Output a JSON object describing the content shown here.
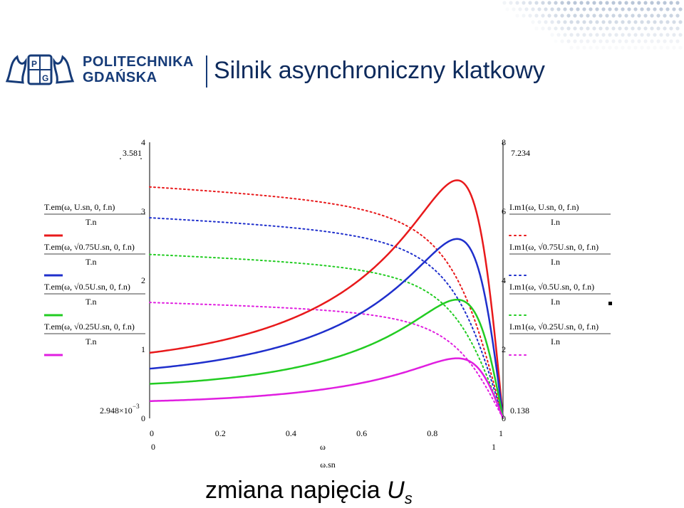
{
  "header": {
    "institution_line1": "POLITECHNIKA",
    "institution_line2": "GDAŃSKA",
    "title": "Silnik asynchroniczny klatkowy"
  },
  "footer": {
    "text": "zmiana napięcia ",
    "var": "U",
    "sub": "s"
  },
  "colors": {
    "red": "#e8191b",
    "blue": "#1f2fcc",
    "green": "#22cc22",
    "magenta": "#e01ee0",
    "axis": "#000000",
    "title": "#0d2a5c",
    "brand": "#163b78"
  },
  "chart_data": {
    "type": "line",
    "x_axis": {
      "min": 0,
      "max": 1,
      "ticks": [
        "0",
        "0.2",
        "0.4",
        "0.6",
        "0.8",
        "1"
      ],
      "label_num": "ω",
      "label_den": "ω.sn",
      "range_left": "0",
      "range_right": "1"
    },
    "y_left": {
      "min": 0,
      "max": 4,
      "ticks": [
        "0",
        "1",
        "2",
        "3",
        "4"
      ],
      "range_top": "3.581",
      "range_bottom": "2.948×10",
      "range_bottom_exp": "−3"
    },
    "y_right": {
      "min": 0,
      "max": 8,
      "ticks": [
        "0",
        "2",
        "4",
        "6",
        "8"
      ],
      "range_top": "7.234",
      "range_bottom": "0.138"
    },
    "legend_left": [
      {
        "num": "T.em(ω, U.sn, 0, f.n)",
        "den": "T.n",
        "color": "red"
      },
      {
        "num": "T.em(ω, √0.75U.sn, 0, f.n)",
        "den": "T.n",
        "color": "blue"
      },
      {
        "num": "T.em(ω, √0.5U.sn, 0, f.n)",
        "den": "T.n",
        "color": "green"
      },
      {
        "num": "T.em(ω, √0.25U.sn, 0, f.n)",
        "den": "T.n",
        "color": "magenta"
      }
    ],
    "legend_right": [
      {
        "num": "I.m1(ω, U.sn, 0, f.n)",
        "den": "I.n",
        "color": "red"
      },
      {
        "num": "I.m1(ω, √0.75U.sn, 0, f.n)",
        "den": "I.n",
        "color": "blue"
      },
      {
        "num": "I.m1(ω, √0.5U.sn, 0, f.n)",
        "den": "I.n",
        "color": "green"
      },
      {
        "num": "I.m1(ω, √0.25U.sn, 0, f.n)",
        "den": "I.n",
        "color": "magenta"
      }
    ],
    "torque_series": [
      {
        "name": "U.sn",
        "color": "red",
        "start": 0.95,
        "peak_x": 0.87,
        "peak": 3.45
      },
      {
        "name": "√0.75U.sn",
        "color": "blue",
        "start": 0.72,
        "peak_x": 0.87,
        "peak": 2.6
      },
      {
        "name": "√0.5U.sn",
        "color": "green",
        "start": 0.5,
        "peak_x": 0.87,
        "peak": 1.72
      },
      {
        "name": "√0.25U.sn",
        "color": "magenta",
        "start": 0.25,
        "peak_x": 0.87,
        "peak": 0.87
      }
    ],
    "current_series": [
      {
        "name": "U.sn",
        "color": "red",
        "start": 6.75
      },
      {
        "name": "√0.75U.sn",
        "color": "blue",
        "start": 5.85
      },
      {
        "name": "√0.5U.sn",
        "color": "green",
        "start": 4.78
      },
      {
        "name": "√0.25U.sn",
        "color": "magenta",
        "start": 3.38
      }
    ]
  }
}
